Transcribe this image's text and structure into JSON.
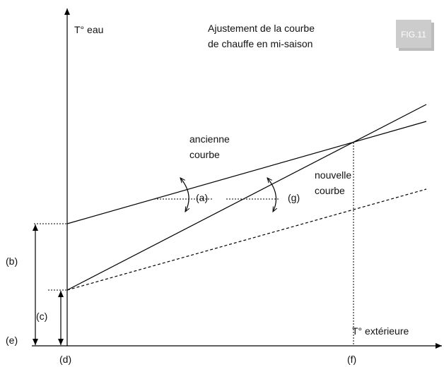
{
  "title": [
    "Ajustement de la courbe",
    "de chauffe en mi-saison"
  ],
  "badge": "FIG.11",
  "y_axis_label": "T° eau",
  "x_axis_label": "T° extérieure",
  "curves": {
    "old": [
      "ancienne",
      "courbe"
    ],
    "new": [
      "nouvelle",
      "courbe"
    ]
  },
  "markers": {
    "a": "(a)",
    "g": "(g)",
    "b": "(b)",
    "c": "(c)",
    "e": "(e)",
    "d": "(d)",
    "f": "(f)"
  }
}
